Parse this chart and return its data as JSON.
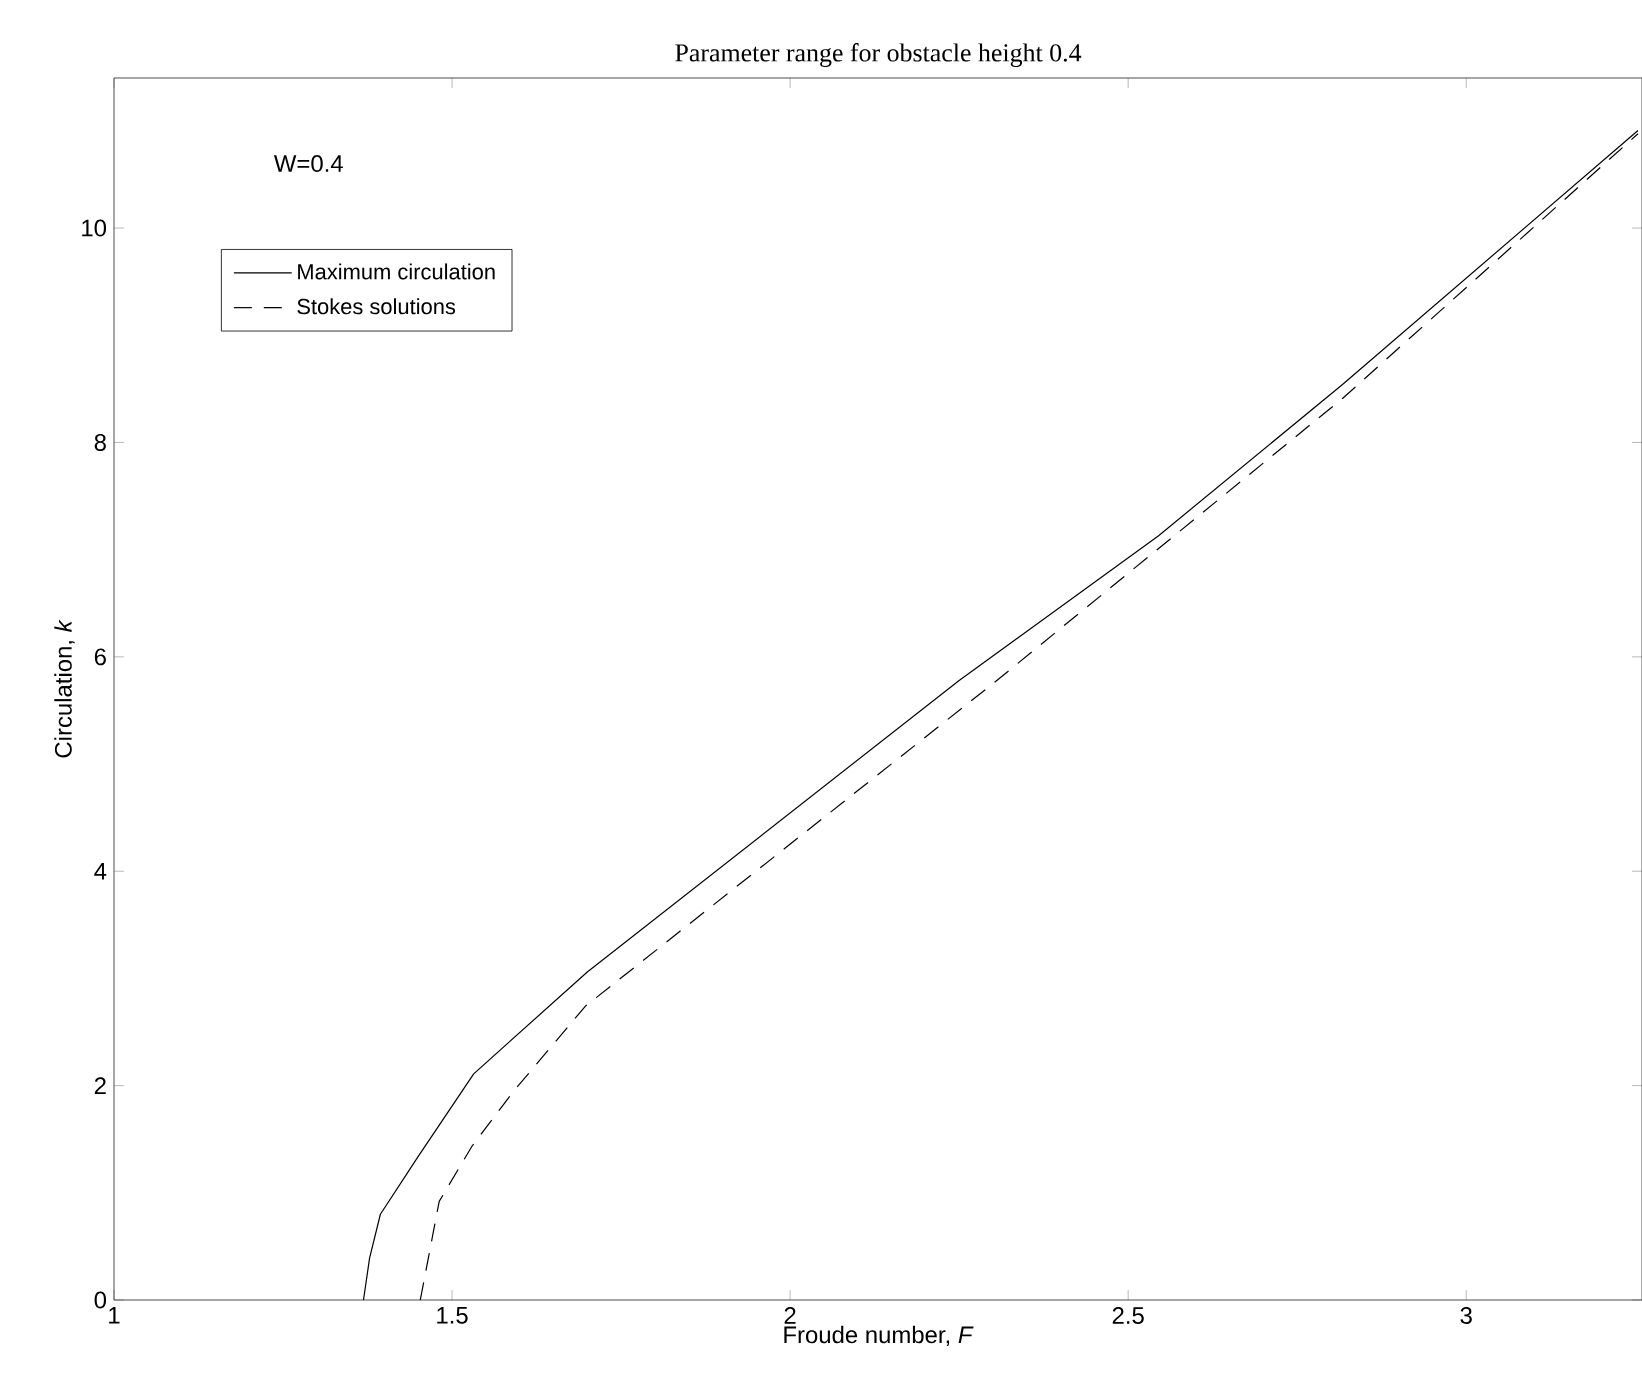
{
  "chart_data": {
    "type": "line",
    "title": "Parameter range for obstacle height 0.4",
    "xlabel": "Froude number, *F*",
    "ylabel": "Circulation, *k*",
    "annotations": [
      "W=0.4"
    ],
    "xlim": [
      1,
      3.26
    ],
    "ylim": [
      0,
      11.4
    ],
    "xticks": [
      1,
      1.5,
      2,
      2.5,
      3
    ],
    "yticks": [
      0,
      2,
      4,
      6,
      8,
      10
    ],
    "legend": "top left",
    "marker": "none",
    "grid": false,
    "series": [
      {
        "name": "Maximum circulation",
        "color": "#000000",
        "line_style": "solid",
        "x": [
          1.369,
          1.378,
          1.394,
          1.45,
          1.532,
          1.7,
          2.25,
          2.545,
          2.817,
          3.254
        ],
        "values": [
          0,
          0.39,
          0.8,
          1.34,
          2.11,
          3.06,
          5.78,
          7.13,
          8.54,
          10.91
        ]
      },
      {
        "name": "Stokes solutions",
        "color": "#000000",
        "line_style": "dashed",
        "x": [
          1.453,
          1.481,
          1.529,
          1.59,
          1.697,
          2.3,
          2.817,
          3.254
        ],
        "values": [
          0,
          0.92,
          1.43,
          1.94,
          2.74,
          5.75,
          8.41,
          10.88
        ]
      }
    ]
  }
}
